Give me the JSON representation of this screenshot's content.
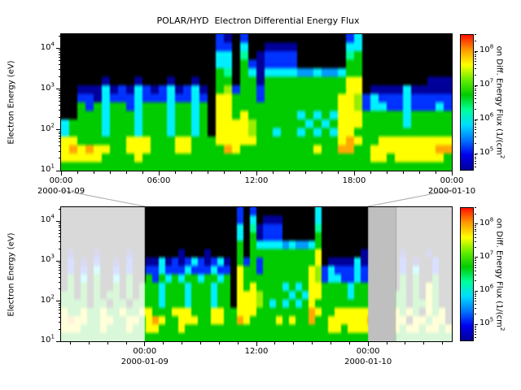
{
  "page": {
    "background": "#ffffff"
  },
  "palette": {
    ".": "#000000",
    "1": "#000099",
    "2": "#0033ff",
    "3": "#0099ff",
    "4": "#00eeff",
    "5": "#00ff99",
    "6": "#00cc00",
    "7": "#99ee00",
    "8": "#ffff00",
    "9": "#ffaa00",
    "a": "#ff2200"
  },
  "colorbar_gradient": [
    "#000099",
    "#0000ee",
    "#0077ff",
    "#00ddff",
    "#00ff99",
    "#00cc00",
    "#66ee00",
    "#ffff00",
    "#ff9900",
    "#ff1100"
  ],
  "chart_data": [
    {
      "type": "heatmap",
      "title": "POLAR/HYD  Electron Differential Energy Flux",
      "ylabel": "Electron Energy (eV)",
      "colorbar_label": "on Diff. Energy Flux (1/(cm^2",
      "x_range_hours": [
        0,
        24
      ],
      "x_minor_step": 1,
      "x_ticks": [
        {
          "hour": 0,
          "label": "00:00"
        },
        {
          "hour": 6,
          "label": "06:00"
        },
        {
          "hour": 12,
          "label": "12:00"
        },
        {
          "hour": 18,
          "label": "18:00"
        },
        {
          "hour": 24,
          "label": "00:00"
        }
      ],
      "dates": [
        {
          "hour": 0,
          "label": "2000-01-09"
        },
        {
          "hour": 24,
          "label": "2000-01-10"
        }
      ],
      "y_log_range": [
        1,
        4.35
      ],
      "y_ticks": [
        {
          "log": 1,
          "label": "10^1"
        },
        {
          "log": 2,
          "label": "10^2"
        },
        {
          "log": 3,
          "label": "10^3"
        },
        {
          "log": 4,
          "label": "10^4"
        }
      ],
      "colorbar": {
        "log_range": [
          4.5,
          8.5
        ],
        "ticks": [
          {
            "log": 5,
            "label": "10^5"
          },
          {
            "log": 6,
            "label": "10^6"
          },
          {
            "log": 7,
            "label": "10^7"
          },
          {
            "log": 8,
            "label": "10^8"
          }
        ]
      },
      "overlays": [],
      "grid": [
        [
          "...................",
          "21.2",
          "............",
          "24",
          "..........."
        ],
        [
          "...................",
          "22.4",
          "..",
          "1111",
          "......",
          "44",
          "..........."
        ],
        [
          "...................",
          "44.5",
          ".1",
          "2222",
          "......",
          "56",
          "..........."
        ],
        [
          "...................",
          "44.6",
          "21",
          "2222",
          "......",
          "66",
          "..........."
        ],
        [
          "...................",
          "65.6",
          "41",
          "4444",
          "33433",
          "466",
          "..",
          "........."
        ],
        [
          "..",
          "...1...1...1..1.",
          ".",
          "66.6",
          "61",
          "6666",
          "66666",
          "688",
          "..",
          "......111"
        ],
        [
          "..",
          "1114121421241241",
          ".",
          "6726",
          "62",
          "6666",
          "66666",
          "688",
          ".1",
          "111411111"
        ],
        [
          "..",
          "2214222422242242",
          ".",
          "8866",
          "62",
          "6666",
          "66666",
          "887",
          "24",
          "222422222"
        ],
        [
          "..",
          "6264662466646646",
          ".",
          "8866",
          "66",
          "6666",
          "66666",
          "887",
          "24",
          "422422242"
        ],
        [
          "..",
          "6664666466646646",
          ".",
          "8868",
          "66",
          "6666",
          "46464",
          "888",
          "66",
          "666466666"
        ],
        [
          "46",
          "6664666466646646",
          ".",
          "8888",
          "76",
          "6666",
          "64646",
          "888",
          "66",
          "666466666"
        ],
        [
          "46",
          "6664666466646646",
          ".",
          "8888",
          "76",
          "6466",
          "46464",
          "886",
          "66",
          "666666666"
        ],
        [
          "88",
          "6666668886668866",
          "6",
          "8888",
          "86",
          "6666",
          "66666",
          "898",
          "66",
          "888888888"
        ],
        [
          "89",
          "8988668886668866",
          "6",
          "6986",
          "66",
          "6666",
          "66866",
          "996",
          "68",
          "888888899"
        ],
        [
          "88",
          "8886666866666666",
          "6",
          "6666",
          "66",
          "6666",
          "66666",
          "666",
          "68",
          "868888886"
        ],
        [
          "666666666666666666666666",
          "666666666666666666666666"
        ]
      ]
    },
    {
      "type": "heatmap",
      "ylabel": "Electron Energy (eV)",
      "colorbar_label": "on Diff. Energy Flux (1/(cm^2",
      "x_range_hours": [
        -9,
        33
      ],
      "x_minor_step": 2,
      "x_ticks": [
        {
          "hour": 0,
          "label": "00:00"
        },
        {
          "hour": 12,
          "label": "12:00"
        },
        {
          "hour": 24,
          "label": "00:00"
        }
      ],
      "dates": [
        {
          "hour": 0,
          "label": "2000-01-09"
        },
        {
          "hour": 24,
          "label": "2000-01-10"
        }
      ],
      "y_log_range": [
        1,
        4.35
      ],
      "y_ticks": [
        {
          "log": 1,
          "label": "10^1"
        },
        {
          "log": 2,
          "label": "10^2"
        },
        {
          "log": 3,
          "label": "10^3"
        },
        {
          "log": 4,
          "label": "10^4"
        }
      ],
      "colorbar": {
        "log_range": [
          4.5,
          8.5
        ],
        "ticks": [
          {
            "log": 5,
            "label": "10^5"
          },
          {
            "log": 6,
            "label": "10^6"
          },
          {
            "log": 7,
            "label": "10^7"
          },
          {
            "log": 8,
            "label": "10^8"
          }
        ]
      },
      "overlays": [
        {
          "from_hour": -9,
          "to_hour": 0,
          "color": "#ffffff",
          "alpha": 0.85
        },
        {
          "from_hour": 24,
          "to_hour": 27,
          "color": "#bfbfbf",
          "alpha": 1
        },
        {
          "from_hour": 27,
          "to_hour": 33,
          "color": "#ffffff",
          "alpha": 0.85
        }
      ],
      "grid": [
        [
          "...........................",
          "2.2",
          ".........",
          "4",
          "...................."
        ],
        [
          "...........................",
          "2.4",
          ".",
          "111",
          ".....",
          "4",
          "...................."
        ],
        [
          "...........................",
          "4.5",
          "1",
          "222",
          ".....",
          "5",
          "...................."
        ],
        [
          "...........................",
          "4.6",
          "1",
          "222",
          ".....",
          "6",
          "...................."
        ],
        [
          "...........................",
          "6.6",
          "4",
          "444",
          "3433",
          "46",
          "...................."
        ],
        [
          ".1...1....1..",
          ".....1...1...",
          ".",
          "6.6",
          "6",
          "666",
          "6666",
          "68",
          "..",
          "....11",
          "666",
          ".1...1..."
        ],
        [
          ".2.1.2..1.2..",
          "1141212421241",
          ".",
          "626",
          "2",
          "666",
          "6666",
          "68",
          ".1",
          "111411",
          "666",
          ".2.1..2.."
        ],
        [
          ".2.2.4..2.2..",
          "2242224222422",
          ".",
          "866",
          "2",
          "666",
          "6666",
          "87",
          "24",
          "222422",
          "666",
          ".2.4..2.."
        ],
        [
          ".6.4.6..4.6..",
          "6264646646646",
          ".",
          "866",
          "6",
          "666",
          "6666",
          "87",
          "24",
          "422422",
          "666",
          ".6.6..6.."
        ],
        [
          ".6.6.6..6.6.6",
          "6646664666466",
          ".",
          "868",
          "6",
          "666",
          "4646",
          "88",
          "66",
          "664666",
          "666",
          ".6.6.86.."
        ],
        [
          "66.6.6.66.6.6",
          "6646664666466",
          ".",
          "888",
          "7",
          "666",
          "6464",
          "88",
          "66",
          "664666",
          "666",
          "66.6.86.."
        ],
        [
          "6666.66.66.66",
          "6646664666466",
          ".",
          "888",
          "7",
          "646",
          "4646",
          "86",
          "66",
          "666666",
          "666",
          "66.6686.."
        ],
        [
          "8668668668668",
          "8666888666886",
          "6",
          "888",
          "6",
          "666",
          "6666",
          "98",
          "66",
          "888888",
          "666",
          "8686.868."
        ],
        [
          "8988668866886",
          "8986688866886",
          "6",
          "986",
          "6",
          "668",
          "6866",
          "96",
          "68",
          "888889",
          "666",
          "88.88688."
        ],
        [
          "8886668666866",
          "8866686666666",
          "6",
          "666",
          "6",
          "666",
          "6666",
          "66",
          "68",
          "868888",
          "666",
          "868868868"
        ],
        [
          "666666666666666666666666666666",
          "666666666666666666666666666666"
        ]
      ]
    }
  ]
}
